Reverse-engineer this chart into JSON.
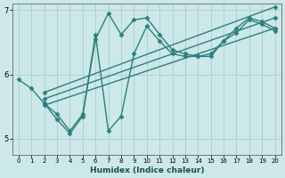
{
  "xlabel": "Humidex (Indice chaleur)",
  "xlim": [
    -0.5,
    20.5
  ],
  "ylim": [
    4.75,
    7.1
  ],
  "yticks": [
    5,
    6,
    7
  ],
  "xticks": [
    0,
    1,
    2,
    3,
    4,
    5,
    6,
    7,
    8,
    9,
    10,
    11,
    12,
    13,
    14,
    15,
    16,
    17,
    18,
    19,
    20
  ],
  "bg_color": "#cce8e8",
  "grid_color": "#aacece",
  "line_color": "#2e7f7f",
  "lines": [
    {
      "x": [
        0,
        1,
        2,
        3,
        4,
        5,
        6,
        7,
        8,
        9,
        10,
        11,
        12,
        13,
        14,
        15,
        16,
        17,
        18,
        19,
        20
      ],
      "y": [
        5.92,
        5.78,
        5.55,
        5.38,
        5.12,
        5.38,
        6.55,
        6.95,
        6.62,
        6.85,
        6.88,
        6.62,
        6.38,
        6.32,
        6.28,
        6.32,
        6.52,
        6.72,
        6.88,
        6.82,
        6.72
      ],
      "marker": "D",
      "markersize": 2.5,
      "linewidth": 1.0
    },
    {
      "x": [
        2,
        3,
        4,
        5,
        6,
        7,
        8,
        9,
        10,
        11,
        12,
        13,
        14,
        15,
        16,
        17,
        18,
        19,
        20
      ],
      "y": [
        5.55,
        5.3,
        5.08,
        5.35,
        6.62,
        5.12,
        5.35,
        6.32,
        6.75,
        6.52,
        6.32,
        6.28,
        6.28,
        6.28,
        6.52,
        6.65,
        6.85,
        6.78,
        6.68
      ],
      "marker": "D",
      "markersize": 2.5,
      "linewidth": 1.0
    },
    {
      "x": [
        2,
        20
      ],
      "y": [
        5.52,
        6.72
      ],
      "marker": "D",
      "markersize": 2.5,
      "linewidth": 1.0
    },
    {
      "x": [
        2,
        20
      ],
      "y": [
        5.62,
        6.88
      ],
      "marker": "D",
      "markersize": 2.5,
      "linewidth": 1.0
    },
    {
      "x": [
        2,
        20
      ],
      "y": [
        5.72,
        7.05
      ],
      "marker": "D",
      "markersize": 2.5,
      "linewidth": 1.0
    }
  ]
}
